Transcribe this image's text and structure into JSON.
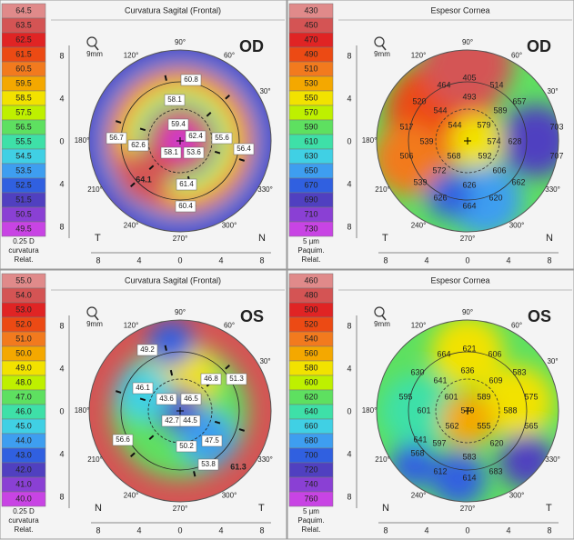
{
  "palette": [
    "#e08a8a",
    "#d45454",
    "#e02424",
    "#ec4a14",
    "#f27a1e",
    "#f4a800",
    "#f2e200",
    "#bef000",
    "#5ee060",
    "#3ee0a8",
    "#40d0e4",
    "#3e9ef0",
    "#3060e0",
    "#5040c0",
    "#8a40d4",
    "#c844e4"
  ],
  "panels": [
    {
      "title": "Curvatura Sagital (Frontal)",
      "eye": "OD",
      "size_label": "9mm",
      "scale": {
        "values": [
          "64.5",
          "63.5",
          "62.5",
          "61.5",
          "60.5",
          "59.5",
          "58.5",
          "57.5",
          "56.5",
          "55.5",
          "54.5",
          "53.5",
          "52.5",
          "51.5",
          "50.5",
          "49.5"
        ],
        "footer": [
          "0.25 D",
          "curvatura",
          "Relat."
        ]
      },
      "y_ticks": [
        "8",
        "4",
        "0",
        "4",
        "8"
      ],
      "x_ticks": [
        "8",
        "4",
        "0",
        "4",
        "8"
      ],
      "left": "T",
      "right": "N",
      "degrees": [
        "90°",
        "120°",
        "60°",
        "180°",
        "30°",
        "210°",
        "330°",
        "240°",
        "270°",
        "300°"
      ],
      "values": [
        "60.8",
        "58.1",
        "56.7",
        "62.6",
        "59.4",
        "62.4",
        "55.6",
        "58.1",
        "53.6",
        "56.4",
        "61.4",
        "60.4",
        "64.1"
      ]
    },
    {
      "title": "Espesor Cornea",
      "eye": "OD",
      "size_label": "9mm",
      "scale": {
        "values": [
          "430",
          "450",
          "470",
          "490",
          "510",
          "530",
          "550",
          "570",
          "590",
          "610",
          "630",
          "650",
          "670",
          "690",
          "710",
          "730"
        ],
        "footer": [
          "5 µm",
          "Paquim.",
          "Relat."
        ]
      },
      "y_ticks": [
        "8",
        "4",
        "0",
        "4",
        "8"
      ],
      "x_ticks": [
        "8",
        "4",
        "0",
        "4",
        "8"
      ],
      "left": "T",
      "right": "N",
      "degrees": [
        "90°",
        "120°",
        "60°",
        "180°",
        "30°",
        "210°",
        "330°",
        "240°",
        "270°",
        "300°"
      ],
      "values": [
        "405",
        "464",
        "493",
        "514",
        "520",
        "544",
        "589",
        "657",
        "517",
        "544",
        "579",
        "703",
        "539",
        "574",
        "628",
        "506",
        "568",
        "592",
        "707",
        "572",
        "606",
        "539",
        "626",
        "662",
        "626",
        "620",
        "664"
      ]
    },
    {
      "title": "Curvatura Sagital (Frontal)",
      "eye": "OS",
      "size_label": "9mm",
      "scale": {
        "values": [
          "55.0",
          "54.0",
          "53.0",
          "52.0",
          "51.0",
          "50.0",
          "49.0",
          "48.0",
          "47.0",
          "46.0",
          "45.0",
          "44.0",
          "43.0",
          "42.0",
          "41.0",
          "40.0"
        ],
        "footer": [
          "0.25 D",
          "curvatura",
          "Relat."
        ]
      },
      "y_ticks": [
        "8",
        "4",
        "0",
        "4",
        "8"
      ],
      "x_ticks": [
        "8",
        "4",
        "0",
        "4",
        "8"
      ],
      "left": "N",
      "right": "T",
      "degrees": [
        "90°",
        "120°",
        "60°",
        "180°",
        "30°",
        "210°",
        "330°",
        "240°",
        "270°",
        "300°"
      ],
      "values": [
        "49.2",
        "46.1",
        "43.6",
        "46.5",
        "46.8",
        "51.3",
        "56.6",
        "42.7",
        "44.5",
        "47.5",
        "50.2",
        "53.8",
        "61.3"
      ]
    },
    {
      "title": "Espesor Cornea",
      "eye": "OS",
      "size_label": "9mm",
      "scale": {
        "values": [
          "460",
          "480",
          "500",
          "520",
          "540",
          "560",
          "580",
          "600",
          "620",
          "640",
          "660",
          "680",
          "700",
          "720",
          "740",
          "760"
        ],
        "footer": [
          "5 µm",
          "Paquim.",
          "Relat."
        ]
      },
      "y_ticks": [
        "8",
        "4",
        "0",
        "4",
        "8"
      ],
      "x_ticks": [
        "8",
        "4",
        "0",
        "4",
        "8"
      ],
      "left": "N",
      "right": "T",
      "degrees": [
        "90°",
        "120°",
        "60°",
        "180°",
        "30°",
        "210°",
        "330°",
        "240°",
        "270°",
        "300°"
      ],
      "values": [
        "621",
        "664",
        "606",
        "630",
        "636",
        "641",
        "609",
        "583",
        "595",
        "601",
        "589",
        "575",
        "601",
        "579",
        "588",
        "562",
        "555",
        "565",
        "641",
        "597",
        "620",
        "568",
        "583",
        "612",
        "614",
        "683"
      ]
    }
  ]
}
